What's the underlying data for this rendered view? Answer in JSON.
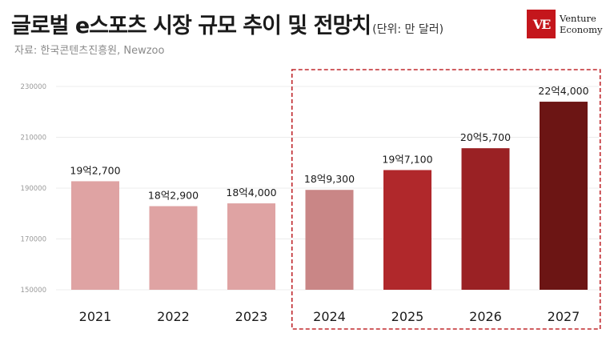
{
  "title": "글로벌 e스포츠 시장 규모 추이 및 전망치",
  "unit_note": "(단위: 만 달러)",
  "source": "자료: 한국콘텐츠진흥원, Newzoo",
  "logo": {
    "mark": "VE",
    "line1": "Venture",
    "line2": "Economy",
    "color": "#c4161c"
  },
  "chart_data": {
    "type": "bar",
    "title": "글로벌 e스포츠 시장 규모 추이 및 전망치",
    "unit": "만 달러",
    "categories": [
      "2021",
      "2022",
      "2023",
      "2024",
      "2025",
      "2026",
      "2027"
    ],
    "values": [
      192700,
      182900,
      184000,
      189300,
      197100,
      205700,
      224000
    ],
    "data_labels": [
      "19억2,700",
      "18억2,900",
      "18억4,000",
      "18억9,300",
      "19억7,100",
      "20억5,700",
      "22억4,000"
    ],
    "bar_colors": [
      "#dfa3a3",
      "#dfa3a3",
      "#dfa3a3",
      "#c98686",
      "#b0282b",
      "#9a2124",
      "#6c1514"
    ],
    "ylim": [
      150000,
      230000
    ],
    "yticks": [
      "150000",
      "170000",
      "190000",
      "210000",
      "230000"
    ],
    "grid": true,
    "highlight": {
      "from": "2024",
      "to": "2027",
      "style": "dashed",
      "color": "#c0282d"
    }
  }
}
